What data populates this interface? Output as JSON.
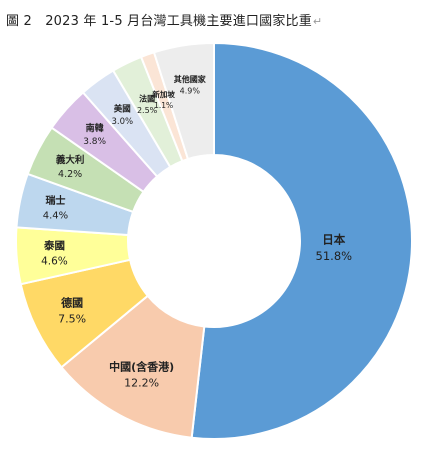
{
  "figure": {
    "title": "圖 2　2023 年 1-5 月台灣工具機主要進口國家比重",
    "return_mark": "↵"
  },
  "chart_data": {
    "type": "pie",
    "donut": true,
    "title": "圖 2　2023 年 1-5 月台灣工具機主要進口國家比重",
    "legend": "none",
    "categories": [
      "日本",
      "中國(含香港)",
      "德國",
      "泰國",
      "瑞士",
      "義大利",
      "南韓",
      "美國",
      "法國",
      "新加坡",
      "其他國家"
    ],
    "values": [
      51.8,
      12.2,
      7.5,
      4.6,
      4.4,
      4.2,
      3.8,
      3.0,
      2.5,
      1.1,
      4.9
    ],
    "value_labels": [
      "51.8%",
      "12.2%",
      "7.5%",
      "4.6%",
      "4.4%",
      "4.2%",
      "3.8%",
      "3.0%",
      "2.5%",
      "1.1%",
      "4.9%"
    ],
    "colors": [
      "#5b9bd5",
      "#f8cbad",
      "#ffd966",
      "#ffff99",
      "#bdd7ee",
      "#c5e0b4",
      "#d9bfe6",
      "#dae3f3",
      "#e2f0d9",
      "#fbe5d6",
      "#ededed"
    ]
  }
}
